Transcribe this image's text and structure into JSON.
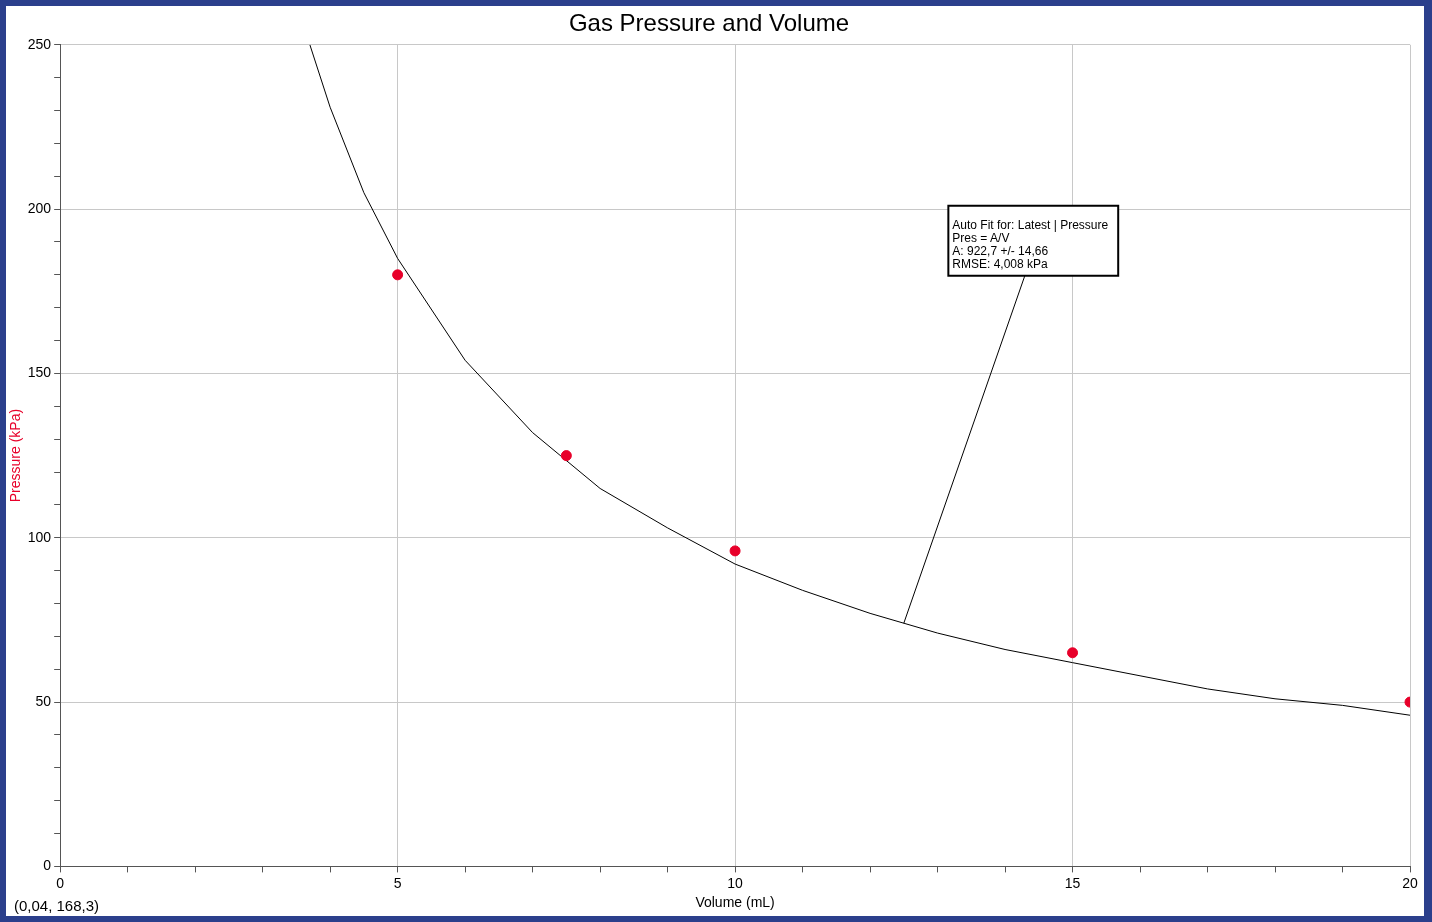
{
  "chart_data": {
    "type": "scatter",
    "title": "Gas Pressure and Volume",
    "xlabel": "Volume (mL)",
    "ylabel": "Pressure (kPa)",
    "xlim": [
      0,
      20
    ],
    "ylim": [
      0,
      250
    ],
    "xticks": [
      0,
      {
        "value": 1,
        "label": null
      },
      {
        "value": 2,
        "label": null
      },
      {
        "value": 3,
        "label": null
      },
      {
        "value": 4,
        "label": null
      },
      5,
      {
        "value": 6,
        "label": null
      },
      {
        "value": 7,
        "label": null
      },
      {
        "value": 8,
        "label": null
      },
      {
        "value": 9,
        "label": null
      },
      10,
      {
        "value": 11,
        "label": null
      },
      {
        "value": 12,
        "label": null
      },
      {
        "value": 13,
        "label": null
      },
      {
        "value": 14,
        "label": null
      },
      15,
      {
        "value": 16,
        "label": null
      },
      {
        "value": 17,
        "label": null
      },
      {
        "value": 18,
        "label": null
      },
      {
        "value": 19,
        "label": null
      },
      20
    ],
    "yticks": [
      0,
      {
        "value": 10,
        "label": null
      },
      {
        "value": 20,
        "label": null
      },
      {
        "value": 30,
        "label": null
      },
      {
        "value": 40,
        "label": null
      },
      50,
      {
        "value": 60,
        "label": null
      },
      {
        "value": 70,
        "label": null
      },
      {
        "value": 80,
        "label": null
      },
      {
        "value": 90,
        "label": null
      },
      100,
      {
        "value": 110,
        "label": null
      },
      {
        "value": 120,
        "label": null
      },
      {
        "value": 130,
        "label": null
      },
      {
        "value": 140,
        "label": null
      },
      150,
      {
        "value": 160,
        "label": null
      },
      {
        "value": 170,
        "label": null
      },
      {
        "value": 180,
        "label": null
      },
      {
        "value": 190,
        "label": null
      },
      200,
      {
        "value": 210,
        "label": null
      },
      {
        "value": 220,
        "label": null
      },
      {
        "value": 230,
        "label": null
      },
      {
        "value": 240,
        "label": null
      },
      250
    ],
    "grid": true,
    "legend": false,
    "series": [
      {
        "color": "#e8002a",
        "marker": "circle",
        "x": [
          5,
          7.5,
          10,
          15,
          20
        ],
        "values": [
          180,
          125,
          96,
          65,
          50
        ]
      },
      {
        "type": "line",
        "color": "#000000",
        "marker": "none",
        "line_style": "solid",
        "x": [
          3.7,
          4,
          4.5,
          5,
          6,
          7,
          8,
          9,
          10,
          11,
          12,
          13,
          14,
          15,
          16,
          17,
          18,
          19,
          20
        ],
        "values": [
          250,
          231,
          205,
          185,
          154,
          132,
          115,
          103,
          92,
          84,
          77,
          71,
          66,
          62,
          58,
          54,
          51,
          49,
          46
        ]
      }
    ],
    "annotations": [
      {
        "text": "Auto Fit for: Latest | Pressure\nPres = A/V\nA: 922,7 +/- 14,66\nRMSE: 4,008 kPa",
        "x": 12.5,
        "y": 74
      },
      "(0,04, 168,3)"
    ]
  }
}
